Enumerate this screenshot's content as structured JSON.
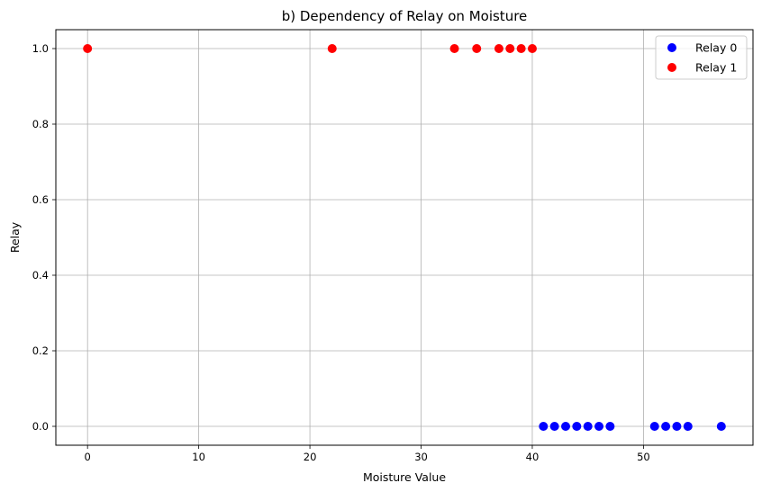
{
  "chart_data": {
    "type": "scatter",
    "title": "b) Dependency of Relay on Moisture",
    "xlabel": "Moisture Value",
    "ylabel": "Relay",
    "xlim": [
      -2.85,
      59.85
    ],
    "ylim": [
      -0.05,
      1.05
    ],
    "xticks": [
      0,
      10,
      20,
      30,
      40,
      50
    ],
    "yticks": [
      0.0,
      0.2,
      0.4,
      0.6,
      0.8,
      1.0
    ],
    "xtick_labels": [
      "0",
      "10",
      "20",
      "30",
      "40",
      "50"
    ],
    "ytick_labels": [
      "0.0",
      "0.2",
      "0.4",
      "0.6",
      "0.8",
      "1.0"
    ],
    "grid": true,
    "legend_position": "top-right",
    "series": [
      {
        "name": "Relay 0",
        "color": "#0000ff",
        "x": [
          41,
          42,
          43,
          44,
          45,
          46,
          47,
          51,
          52,
          53,
          54,
          57
        ],
        "y": [
          0,
          0,
          0,
          0,
          0,
          0,
          0,
          0,
          0,
          0,
          0,
          0
        ]
      },
      {
        "name": "Relay 1",
        "color": "#ff0000",
        "x": [
          0,
          22,
          33,
          35,
          37,
          38,
          39,
          40
        ],
        "y": [
          1,
          1,
          1,
          1,
          1,
          1,
          1,
          1
        ]
      }
    ]
  }
}
